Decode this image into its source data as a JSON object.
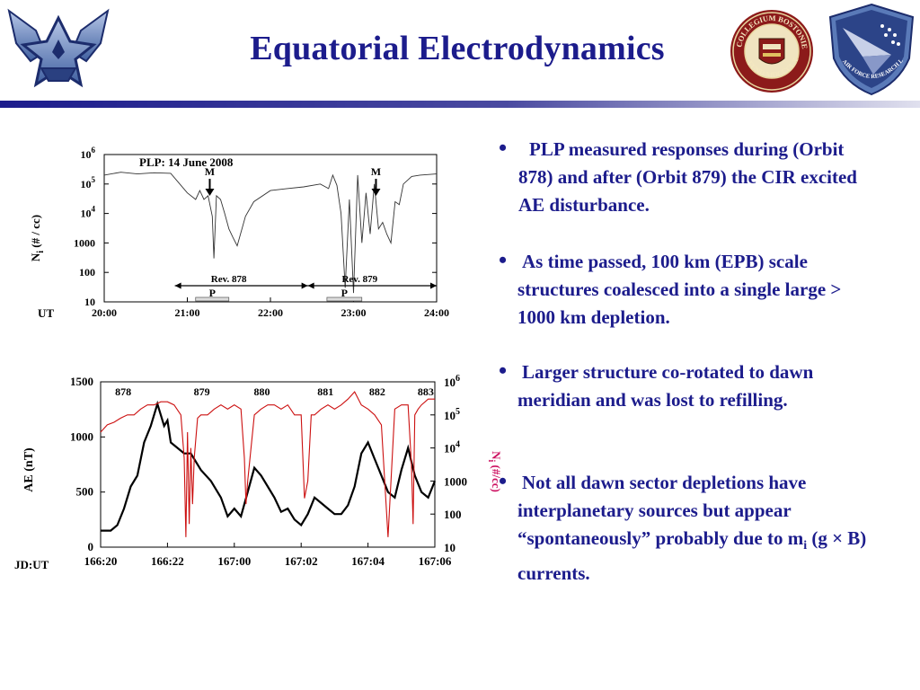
{
  "title": "Equatorial Electrodynamics",
  "logos": {
    "left": "us-air-force-wings-logo",
    "center": "boston-college-seal",
    "center_text": "COLLEGIUM BOSTONIENSE FUND MDCCCLXIII",
    "right": "air-force-research-laboratory-logo",
    "right_text": "AIR FORCE RESEARCH LABORATORY"
  },
  "colors": {
    "title": "#1c1c8c",
    "rule_dark": "#1c1c8c",
    "rule_light": "#d8d8e8",
    "ni_trace_bottom": "#cc1010",
    "ae_trace": "#000000",
    "ni_label_bottom": "#cc1060"
  },
  "bullets": [
    {
      "pre": "PLP measured responses during (Orbit 878) and after (Orbit 879) the CIR excited AE disturbance."
    },
    {
      "pre": "As time passed, 100 km (EPB) scale structures coalesced into a single large > 1000 km depletion."
    },
    {
      "pre": "Larger structure co-rotated to dawn meridian and was lost to refilling."
    },
    {
      "pre": "Not all dawn sector depletions have interplanetary sources but appear “spontaneously” probably due to m",
      "sub": "i",
      "post": " (g × B) currents."
    }
  ],
  "chart_data": [
    {
      "type": "line",
      "title": "PLP: 14 June 2008",
      "ylabel": "N_i (# / cc)",
      "xlabel": "UT",
      "y_scale": "log",
      "ylim": [
        10,
        1000000
      ],
      "y_ticks": [
        "10",
        "100",
        "1000",
        "10^4",
        "10^5",
        "10^6"
      ],
      "x_ticks": [
        "20:00",
        "21:00",
        "22:00",
        "23:00",
        "24:00"
      ],
      "xlim_hours": [
        20.0,
        24.0
      ],
      "annotations": [
        {
          "text": "M",
          "x_hours": 21.27
        },
        {
          "text": "M",
          "x_hours": 23.27
        }
      ],
      "revolutions": [
        {
          "label": "Rev. 878",
          "marker": "P",
          "span_hours": [
            20.85,
            22.45
          ],
          "p_hours": [
            21.1,
            21.5
          ]
        },
        {
          "label": "Rev. 879",
          "marker": "P",
          "span_hours": [
            22.45,
            24.0
          ],
          "p_hours": [
            22.68,
            23.1
          ]
        }
      ],
      "series": [
        {
          "x": [
            20.0,
            20.2,
            20.4,
            20.6,
            20.8,
            21.0,
            21.1,
            21.15,
            21.2,
            21.25,
            21.3,
            21.32,
            21.35,
            21.4,
            21.45,
            21.5,
            21.55,
            21.6,
            21.65,
            21.7,
            21.8,
            22.0,
            22.2,
            22.4,
            22.6,
            22.7,
            22.75,
            22.8,
            22.85,
            22.9,
            22.95,
            23.0,
            23.05,
            23.1,
            23.15,
            23.2,
            23.25,
            23.3,
            23.35,
            23.4,
            23.45,
            23.5,
            23.55,
            23.6,
            23.7,
            23.8,
            24.0
          ],
          "y": [
            200000,
            250000,
            220000,
            240000,
            230000,
            50000,
            30000,
            60000,
            30000,
            40000,
            8000,
            300,
            40000,
            30000,
            10000,
            3000,
            1500,
            800,
            2500,
            8000,
            25000,
            60000,
            70000,
            80000,
            100000,
            70000,
            200000,
            90000,
            10000,
            30,
            30000,
            20,
            200000,
            1000,
            50000,
            2000,
            100000,
            3000,
            5000,
            2000,
            1000,
            25000,
            20000,
            100000,
            180000,
            200000,
            220000
          ]
        }
      ]
    },
    {
      "type": "line",
      "ylabel": "AE (nT)",
      "y2label": "N_i (#/cc)",
      "xlabel": "JD:UT",
      "ylim": [
        0,
        1500
      ],
      "y_ticks": [
        "0",
        "500",
        "1000",
        "1500"
      ],
      "y2_scale": "log",
      "y2lim": [
        10,
        1000000
      ],
      "y2_ticks": [
        "10",
        "100",
        "1000",
        "10^4",
        "10^5",
        "10^6"
      ],
      "x_ticks": [
        "166:20",
        "166:22",
        "167:00",
        "167:02",
        "167:04",
        "167:06"
      ],
      "xlim_hours": [
        0,
        10
      ],
      "orbit_labels": [
        {
          "text": "878",
          "x_hours": 0.3
        },
        {
          "text": "879",
          "x_hours": 2.65
        },
        {
          "text": "880",
          "x_hours": 4.45
        },
        {
          "text": "881",
          "x_hours": 6.35
        },
        {
          "text": "882",
          "x_hours": 7.9
        },
        {
          "text": "883",
          "x_hours": 9.35
        }
      ],
      "series": [
        {
          "name": "AE",
          "axis": "left",
          "color": "#000000",
          "x": [
            0.0,
            0.3,
            0.5,
            0.7,
            0.9,
            1.1,
            1.3,
            1.5,
            1.7,
            1.9,
            2.0,
            2.1,
            2.3,
            2.5,
            2.7,
            3.0,
            3.3,
            3.6,
            3.8,
            4.0,
            4.2,
            4.4,
            4.6,
            4.8,
            5.0,
            5.2,
            5.4,
            5.6,
            5.8,
            6.0,
            6.2,
            6.4,
            6.6,
            6.8,
            7.0,
            7.2,
            7.4,
            7.6,
            7.8,
            8.0,
            8.2,
            8.4,
            8.6,
            8.8,
            9.0,
            9.2,
            9.4,
            9.6,
            9.8,
            10.0
          ],
          "y": [
            150,
            150,
            200,
            350,
            550,
            650,
            950,
            1100,
            1300,
            1100,
            1150,
            950,
            900,
            850,
            850,
            700,
            600,
            450,
            280,
            350,
            280,
            500,
            720,
            650,
            550,
            450,
            320,
            350,
            250,
            200,
            300,
            450,
            400,
            350,
            300,
            300,
            380,
            550,
            850,
            950,
            800,
            650,
            500,
            450,
            700,
            900,
            650,
            500,
            450,
            600
          ]
        },
        {
          "name": "Ni",
          "axis": "right",
          "color": "#cc1010",
          "x": [
            0.0,
            0.2,
            0.4,
            0.6,
            0.8,
            1.0,
            1.2,
            1.4,
            1.6,
            1.8,
            2.0,
            2.2,
            2.4,
            2.5,
            2.55,
            2.6,
            2.65,
            2.7,
            2.75,
            2.8,
            2.9,
            3.0,
            3.2,
            3.4,
            3.6,
            3.8,
            4.0,
            4.2,
            4.3,
            4.35,
            4.4,
            4.5,
            4.6,
            4.8,
            5.0,
            5.2,
            5.4,
            5.6,
            5.8,
            6.0,
            6.1,
            6.2,
            6.3,
            6.4,
            6.6,
            6.8,
            7.0,
            7.2,
            7.4,
            7.6,
            7.8,
            8.0,
            8.2,
            8.4,
            8.6,
            8.8,
            9.0,
            9.2,
            9.3,
            9.35,
            9.4,
            9.5,
            9.6,
            9.8,
            10.0
          ],
          "y": [
            30000,
            50000,
            60000,
            80000,
            100000,
            100000,
            150000,
            200000,
            200000,
            250000,
            250000,
            200000,
            100000,
            5000,
            20,
            30000,
            50,
            10000,
            200,
            5000,
            80000,
            100000,
            100000,
            150000,
            200000,
            150000,
            200000,
            150000,
            5000,
            200,
            1000,
            10000,
            100000,
            150000,
            200000,
            200000,
            150000,
            200000,
            100000,
            100000,
            300,
            1000,
            100000,
            100000,
            150000,
            200000,
            150000,
            200000,
            300000,
            500000,
            200000,
            150000,
            100000,
            50000,
            20,
            150000,
            200000,
            200000,
            3000,
            50,
            100000,
            150000,
            200000,
            300000,
            300000
          ]
        }
      ]
    }
  ]
}
